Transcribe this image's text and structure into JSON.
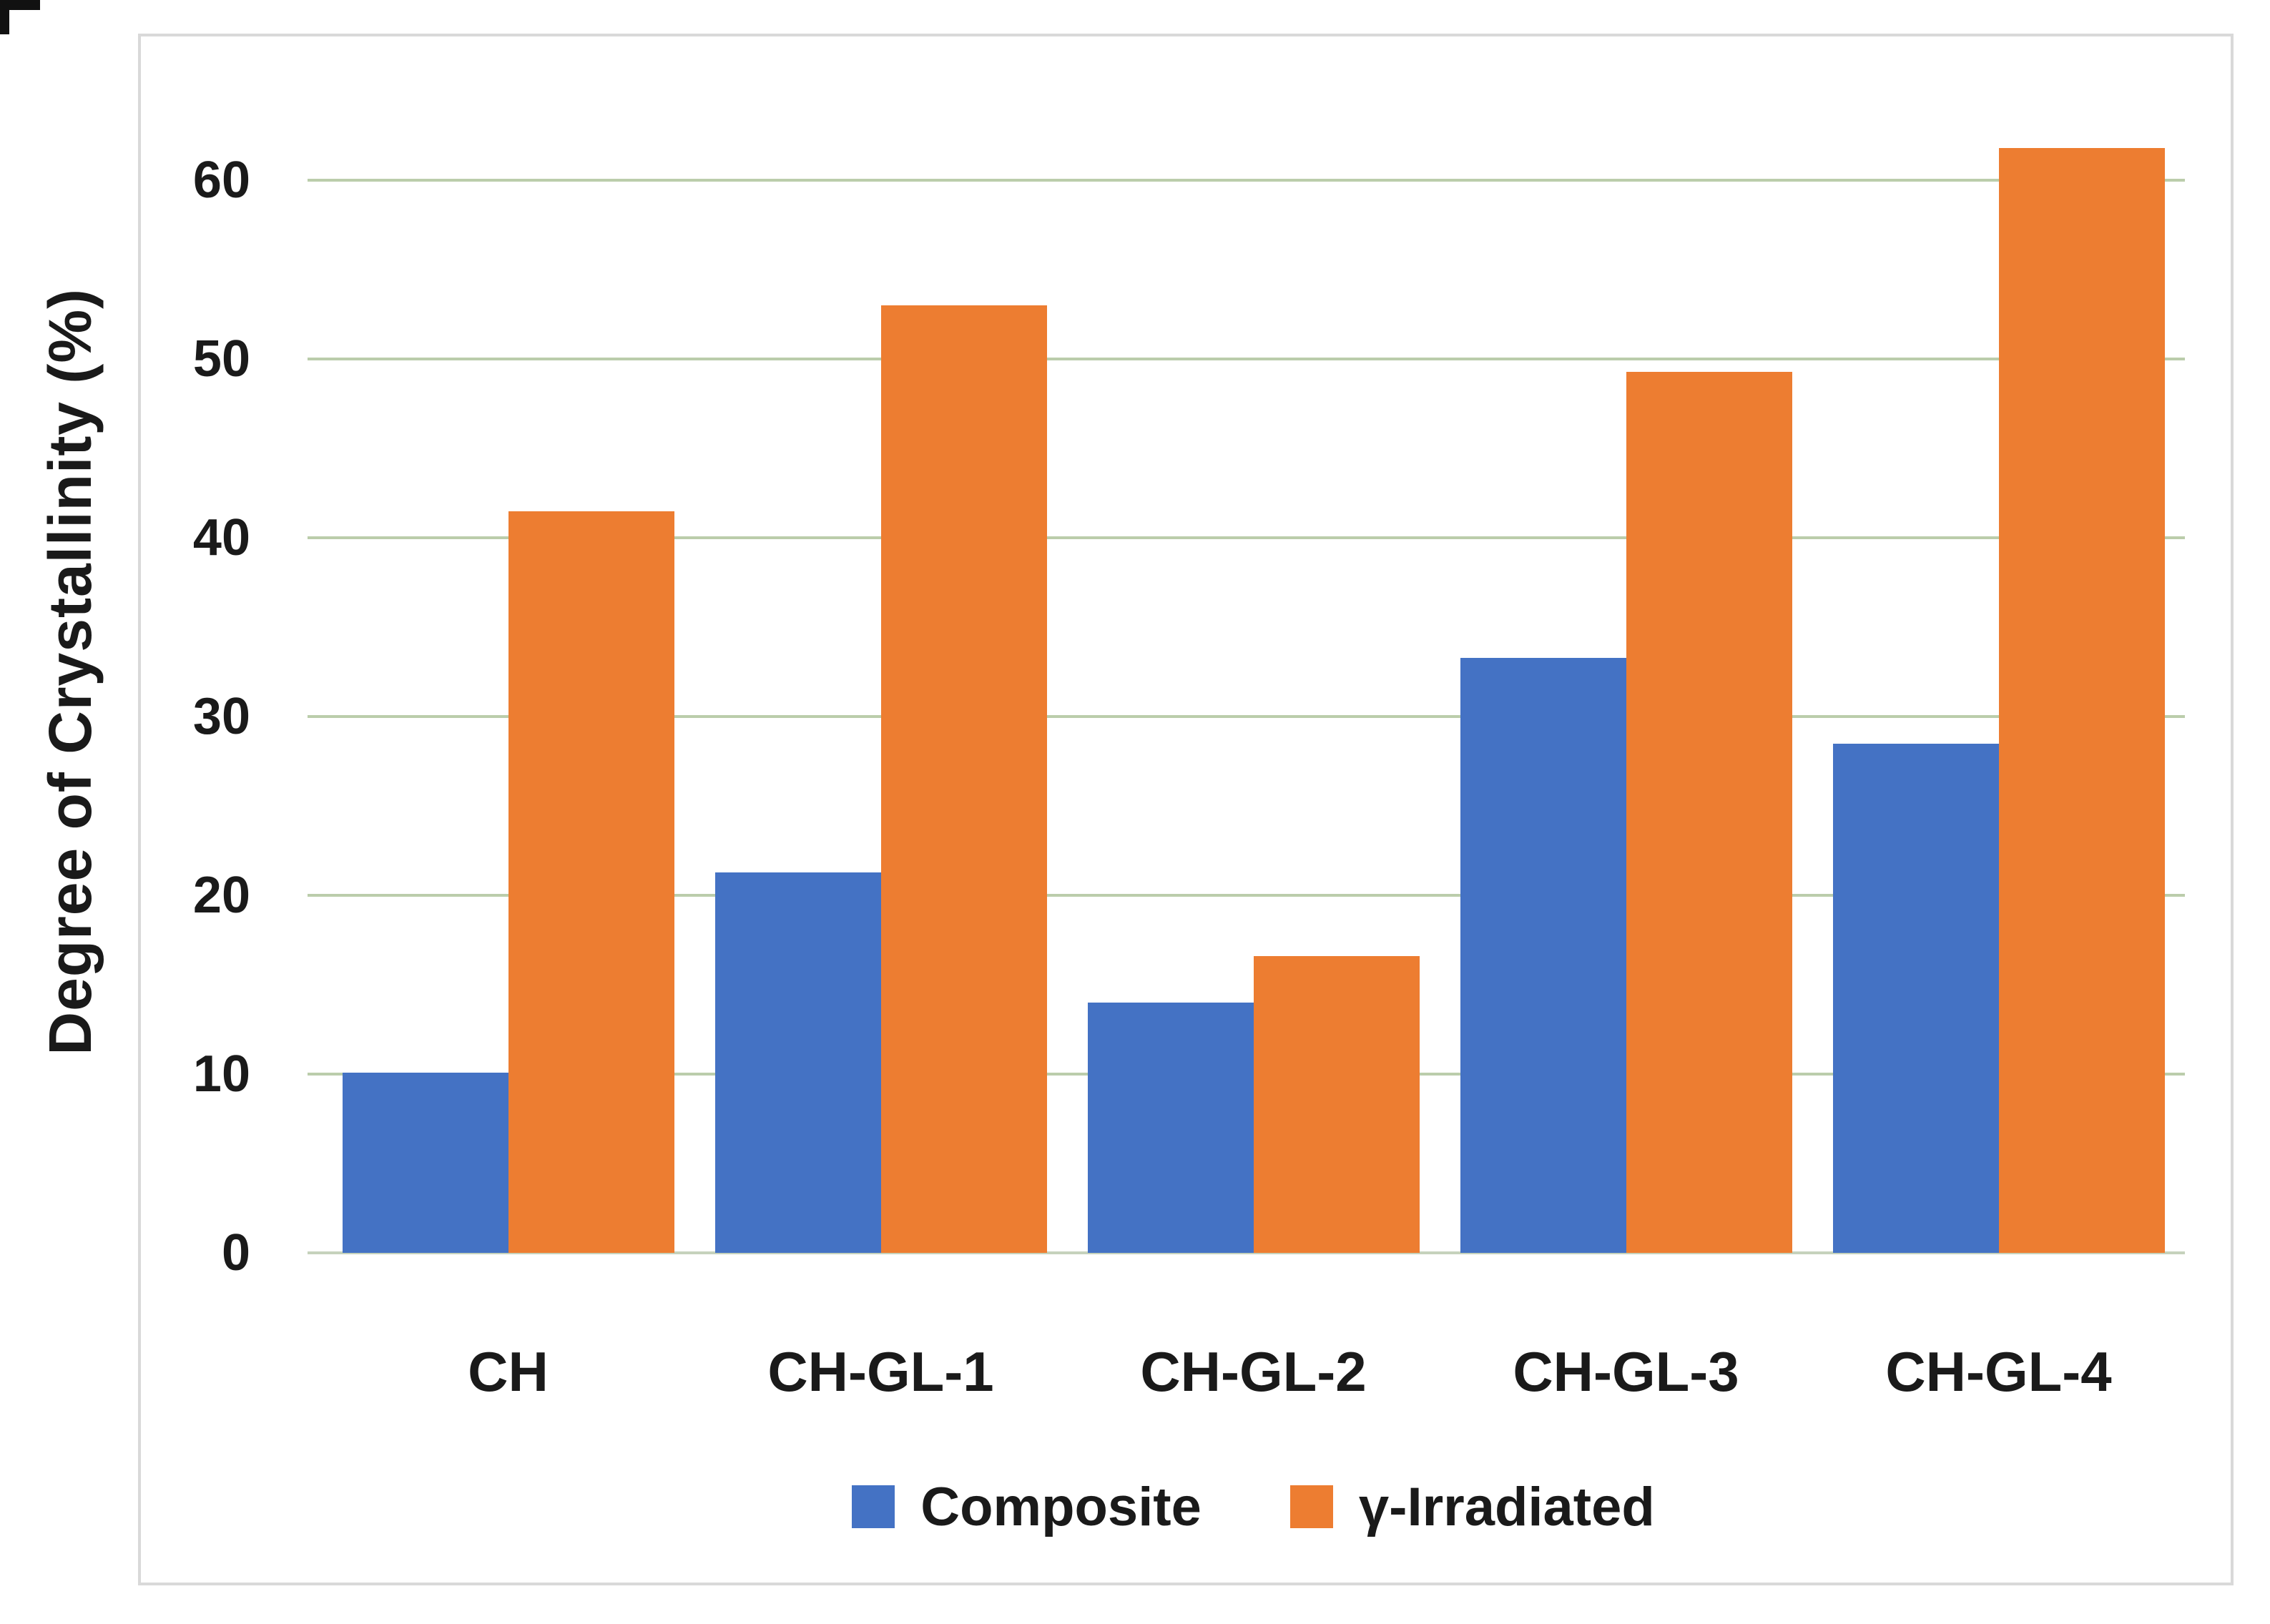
{
  "chart_data": {
    "type": "bar",
    "title": "",
    "categories": [
      "CH",
      "CH-GL-1",
      "CH-GL-2",
      "CH-GL-3",
      "CH-GL-4"
    ],
    "series": [
      {
        "name": "Composite",
        "color": "#4472C4",
        "values": [
          10.1,
          21.3,
          14.0,
          33.3,
          28.5
        ]
      },
      {
        "name": "γ-Irradiated",
        "color": "#ED7D31",
        "values": [
          41.5,
          53.0,
          16.6,
          49.3,
          61.8
        ]
      }
    ],
    "xlabel": "",
    "ylabel": "Degree of Crystallinity (%)",
    "ylim": [
      0,
      65
    ],
    "yticks": [
      0,
      10,
      20,
      30,
      40,
      50,
      60
    ],
    "grid": "horizontal",
    "legend_position": "bottom"
  },
  "colors": {
    "bar_blue": "#4472C4",
    "bar_orange": "#ED7D31",
    "gridline_green": "#afc49c",
    "frame_gray": "#d9d9d9",
    "text": "#1a1a1a"
  }
}
